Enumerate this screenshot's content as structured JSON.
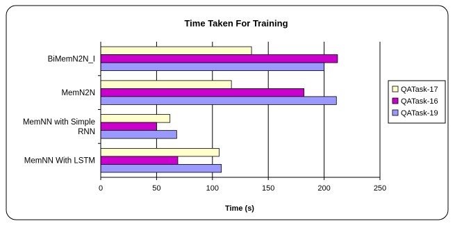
{
  "chart_data": {
    "type": "bar",
    "orientation": "horizontal",
    "title": "Time Taken For Training",
    "xlabel": "Time (s)",
    "ylabel": "",
    "xlim": [
      0,
      250
    ],
    "xticks": [
      "0",
      "50",
      "100",
      "150",
      "200",
      "250"
    ],
    "grid": true,
    "legend_position": "right",
    "categories": [
      [
        "BiMemN2N_I"
      ],
      [
        "MemN2N"
      ],
      [
        "MemNN with Simple",
        "RNN"
      ],
      [
        "MemNN With LSTM"
      ]
    ],
    "series": [
      {
        "name": "QATask-17",
        "color": "#ffffcc",
        "values": [
          135,
          117,
          62,
          106
        ]
      },
      {
        "name": "QATask-16",
        "color": "#cc00cc",
        "values": [
          212,
          182,
          50,
          69
        ]
      },
      {
        "name": "QATask-19",
        "color": "#9999ff",
        "values": [
          200,
          211,
          68,
          108
        ]
      }
    ]
  }
}
